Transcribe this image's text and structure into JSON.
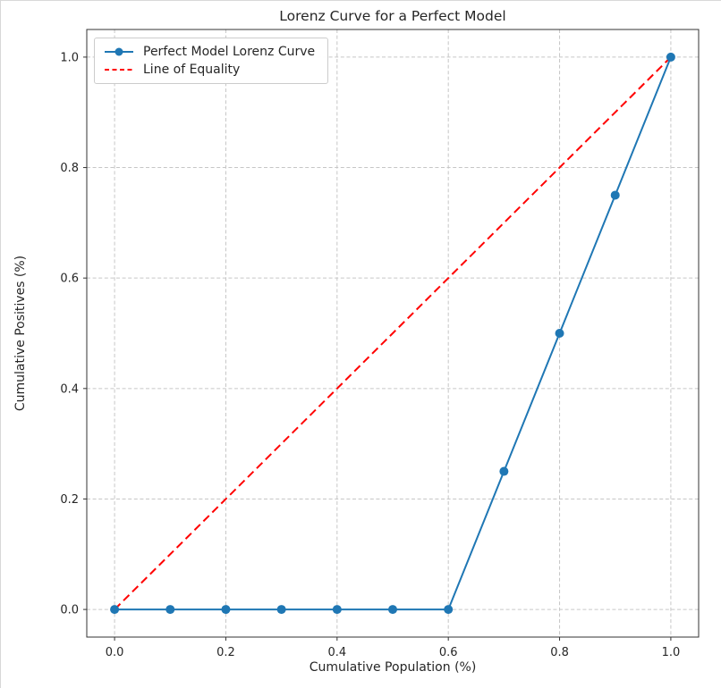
{
  "chart_data": {
    "type": "line",
    "title": "Lorenz Curve for a Perfect Model",
    "xlabel": "Cumulative Population (%)",
    "ylabel": "Cumulative Positives (%)",
    "xlim": [
      -0.05,
      1.05
    ],
    "ylim": [
      -0.05,
      1.05
    ],
    "xticks": [
      0.0,
      0.2,
      0.4,
      0.6,
      0.8,
      1.0
    ],
    "yticks": [
      0.0,
      0.2,
      0.4,
      0.6,
      0.8,
      1.0
    ],
    "grid": true,
    "legend_position": "upper left",
    "series": [
      {
        "name": "Perfect Model Lorenz Curve",
        "color": "#1f77b4",
        "style": "solid",
        "marker": "circle",
        "x": [
          0.0,
          0.1,
          0.2,
          0.3,
          0.4,
          0.5,
          0.6,
          0.7,
          0.8,
          0.9,
          1.0
        ],
        "y": [
          0.0,
          0.0,
          0.0,
          0.0,
          0.0,
          0.0,
          0.0,
          0.25,
          0.5,
          0.75,
          1.0
        ]
      },
      {
        "name": "Line of Equality",
        "color": "#ff0000",
        "style": "dashed",
        "marker": "none",
        "x": [
          0.0,
          1.0
        ],
        "y": [
          0.0,
          1.0
        ]
      }
    ]
  }
}
